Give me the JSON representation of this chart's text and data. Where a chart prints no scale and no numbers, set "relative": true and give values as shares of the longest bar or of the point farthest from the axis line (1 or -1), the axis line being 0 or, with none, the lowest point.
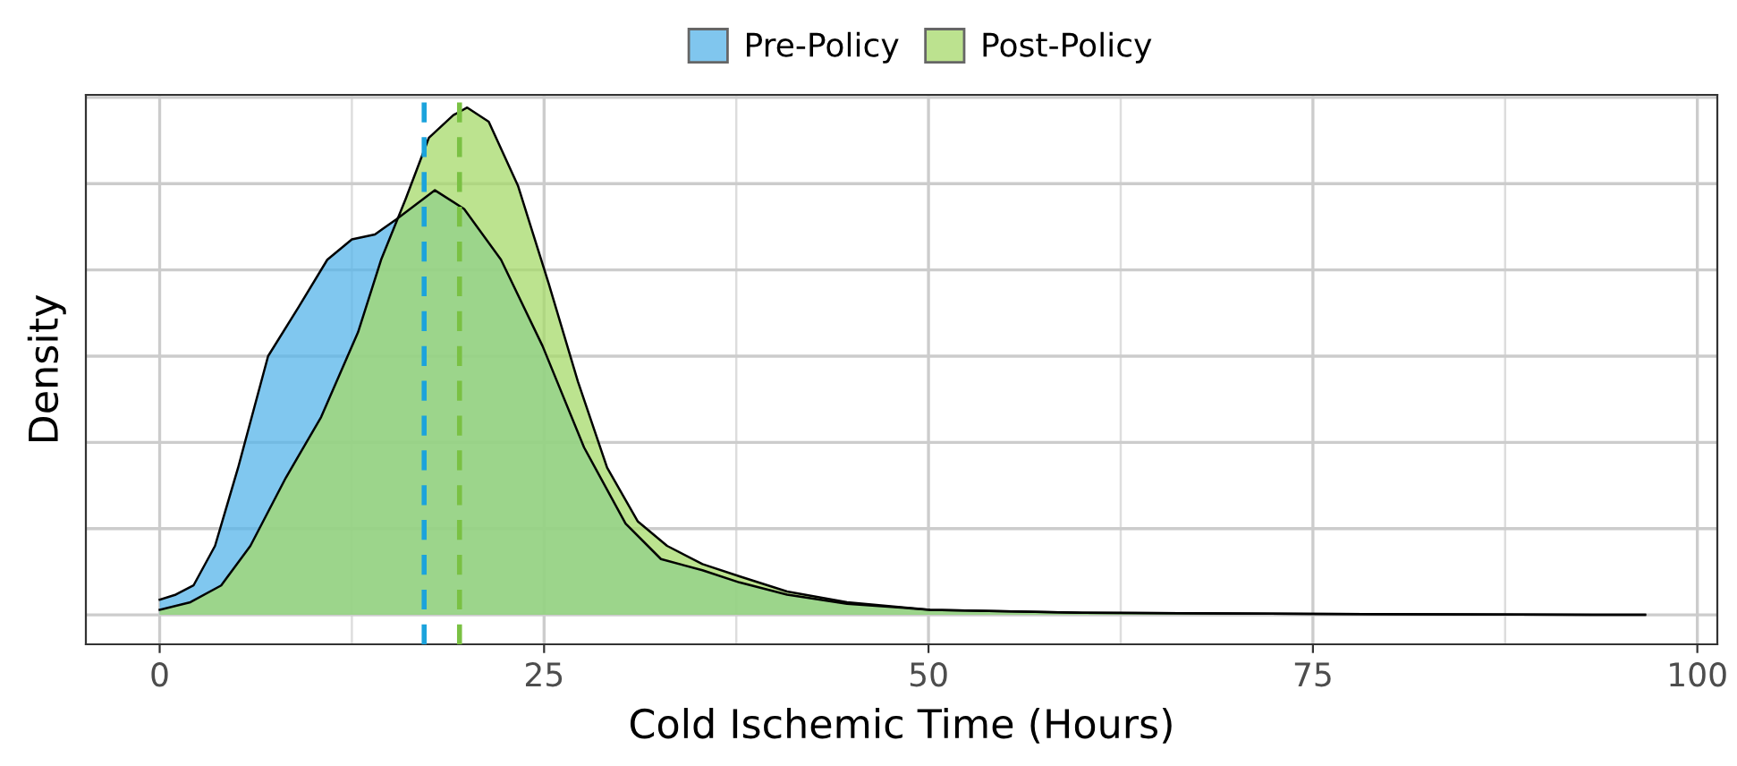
{
  "chart_data": {
    "type": "area",
    "relative": true,
    "xlabel": "Cold Ischemic Time (Hours)",
    "ylabel": "Density",
    "xlim": [
      -4.8,
      101.3
    ],
    "xticks": [
      0,
      25,
      50,
      75,
      100
    ],
    "grid": true,
    "legend": "top",
    "tick_labels": "x",
    "series": [
      {
        "name": "Pre-Policy",
        "color": "#56b4e9",
        "x": [
          0,
          1.05,
          2.2,
          3.6,
          5.1,
          7.05,
          9.0,
          10.9,
          12.5,
          14.0,
          15.4,
          17.9,
          19.8,
          22.2,
          24.9,
          27.6,
          30.3,
          32.6,
          35.3,
          37.7,
          40.8,
          44.7,
          50.1,
          60,
          75,
          96.6
        ],
        "values": [
          0.03,
          0.04,
          0.058,
          0.136,
          0.29,
          0.51,
          0.605,
          0.7,
          0.74,
          0.75,
          0.78,
          0.837,
          0.8,
          0.7,
          0.53,
          0.33,
          0.18,
          0.11,
          0.088,
          0.064,
          0.04,
          0.022,
          0.01,
          0.004,
          0.002,
          0
        ]
      },
      {
        "name": "Post-Policy",
        "color": "#a6d96a",
        "x": [
          0,
          2.0,
          4.0,
          5.9,
          8.2,
          10.5,
          12.9,
          14.4,
          16.0,
          17.5,
          19.1,
          20.0,
          21.4,
          23.3,
          25.3,
          27.2,
          29.1,
          31.1,
          33.0,
          35.3,
          37.7,
          40.8,
          44.7,
          50.1,
          60,
          75,
          96.6
        ],
        "values": [
          0.01,
          0.025,
          0.058,
          0.136,
          0.27,
          0.39,
          0.557,
          0.7,
          0.82,
          0.94,
          0.985,
          1.0,
          0.972,
          0.846,
          0.653,
          0.46,
          0.29,
          0.184,
          0.136,
          0.1,
          0.076,
          0.046,
          0.025,
          0.01,
          0.004,
          0.002,
          0
        ]
      }
    ],
    "ref_lines": [
      {
        "axis": "x",
        "value": 17.2,
        "color": "#1ba3dc",
        "line_style": "dashed"
      },
      {
        "axis": "x",
        "value": 19.5,
        "color": "#7ac143",
        "line_style": "dashed"
      }
    ]
  }
}
